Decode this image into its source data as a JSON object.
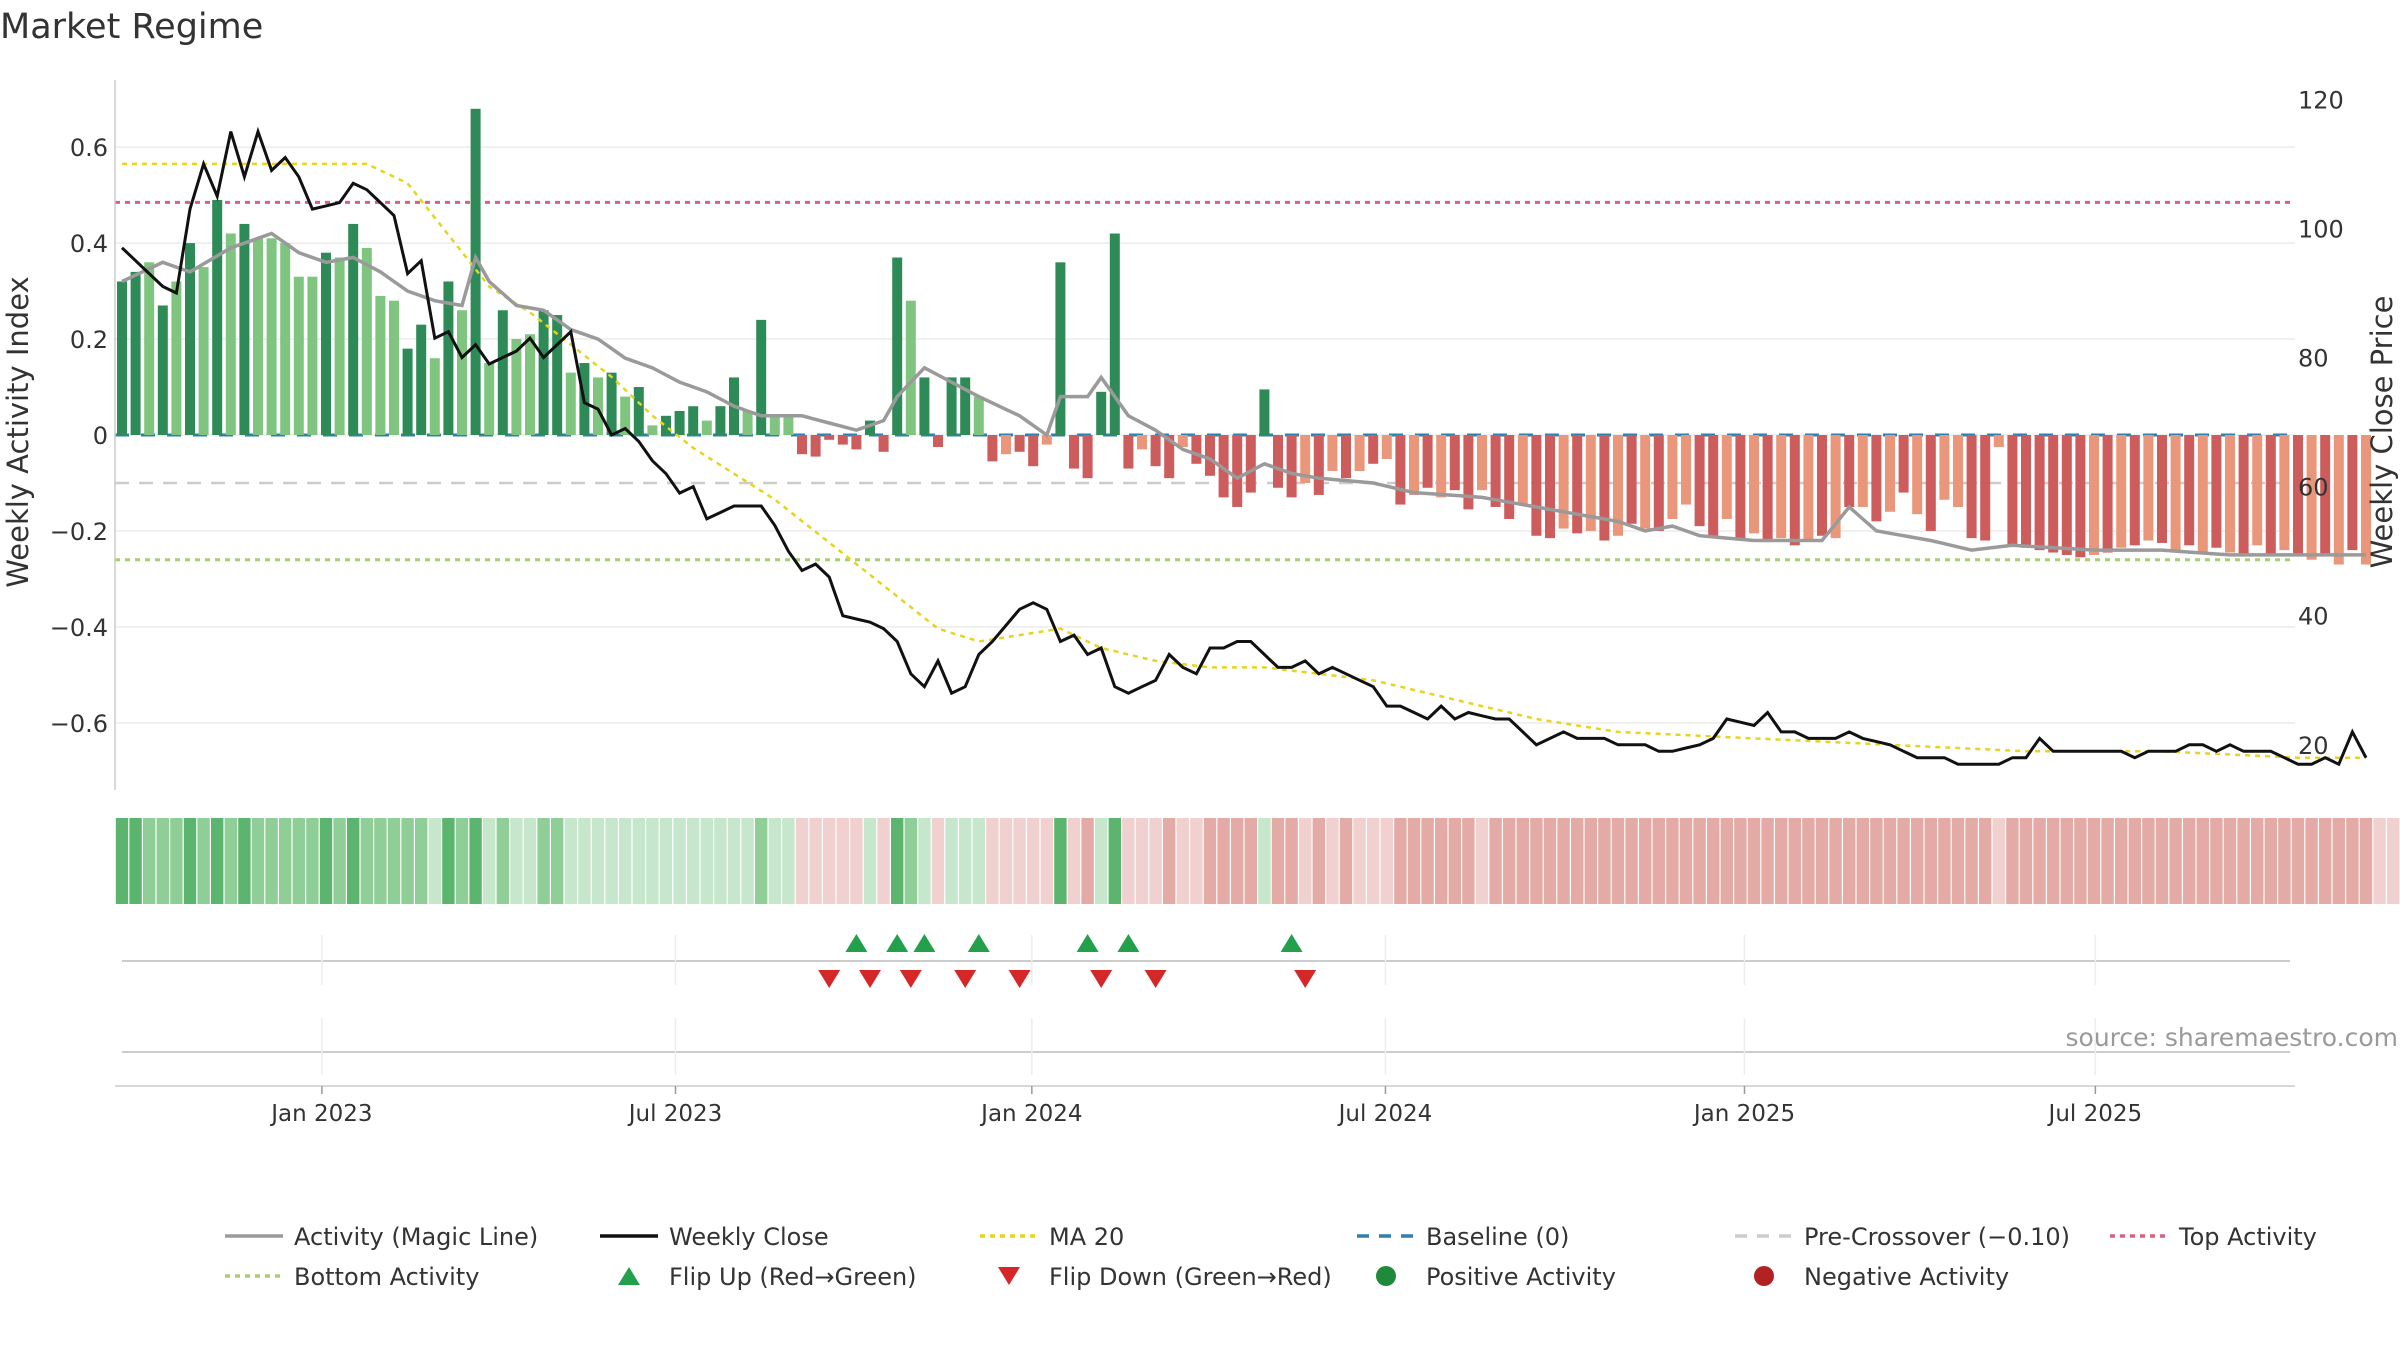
{
  "chart_data": {
    "type": "bar",
    "title": "Market Regime",
    "ylabel_left": "Weekly Activity Index",
    "ylabel_right": "Weekly Close Price",
    "ylim_left": [
      -0.74,
      0.74
    ],
    "ylim_right": [
      13,
      123
    ],
    "y_ticks_left": [
      {
        "v": 0.6,
        "label": "0.6"
      },
      {
        "v": 0.4,
        "label": "0.4"
      },
      {
        "v": 0.2,
        "label": "0.2"
      },
      {
        "v": 0,
        "label": "0"
      },
      {
        "v": -0.2,
        "label": "−0.2"
      },
      {
        "v": -0.4,
        "label": "−0.4"
      },
      {
        "v": -0.6,
        "label": "−0.6"
      }
    ],
    "y_ticks_right": [
      {
        "v": 120,
        "label": "120"
      },
      {
        "v": 100,
        "label": "100"
      },
      {
        "v": 80,
        "label": "80"
      },
      {
        "v": 60,
        "label": "60"
      },
      {
        "v": 40,
        "label": "40"
      },
      {
        "v": 20,
        "label": "20"
      }
    ],
    "x_ticks": [
      {
        "i": 14.7,
        "label": "Jan 2023"
      },
      {
        "i": 40.7,
        "label": "Jul 2023"
      },
      {
        "i": 66.9,
        "label": "Jan 2024"
      },
      {
        "i": 92.9,
        "label": "Jul 2024"
      },
      {
        "i": 119.3,
        "label": "Jan 2025"
      },
      {
        "i": 145.1,
        "label": "Jul 2025"
      }
    ],
    "reference_lines": {
      "top_activity": 0.485,
      "bottom_activity": -0.26,
      "pre_crossover": -0.1,
      "baseline": 0
    },
    "activity": [
      0.32,
      0.34,
      0.36,
      0.27,
      0.32,
      0.4,
      0.35,
      0.49,
      0.42,
      0.44,
      0.41,
      0.41,
      0.4,
      0.33,
      0.33,
      0.38,
      0.37,
      0.44,
      0.39,
      0.29,
      0.28,
      0.18,
      0.23,
      0.16,
      0.32,
      0.26,
      0.68,
      0.15,
      0.26,
      0.2,
      0.21,
      0.26,
      0.25,
      0.13,
      0.15,
      0.12,
      0.13,
      0.08,
      0.1,
      0.02,
      0.04,
      0.05,
      0.06,
      0.03,
      0.06,
      0.12,
      0.05,
      0.24,
      0.04,
      0.04,
      -0.04,
      -0.045,
      -0.01,
      -0.02,
      -0.03,
      0.03,
      -0.035,
      0.37,
      0.28,
      0.12,
      -0.025,
      0.12,
      0.12,
      0.08,
      -0.055,
      -0.04,
      -0.035,
      -0.065,
      -0.02,
      0.36,
      -0.07,
      -0.09,
      0.09,
      0.42,
      -0.07,
      -0.03,
      -0.065,
      -0.09,
      -0.025,
      -0.06,
      -0.085,
      -0.13,
      -0.15,
      -0.12,
      0.095,
      -0.11,
      -0.13,
      -0.1,
      -0.125,
      -0.075,
      -0.09,
      -0.075,
      -0.06,
      -0.05,
      -0.145,
      -0.125,
      -0.11,
      -0.13,
      -0.115,
      -0.155,
      -0.115,
      -0.15,
      -0.175,
      -0.145,
      -0.21,
      -0.215,
      -0.195,
      -0.205,
      -0.2,
      -0.22,
      -0.21,
      -0.185,
      -0.195,
      -0.2,
      -0.175,
      -0.145,
      -0.19,
      -0.21,
      -0.175,
      -0.22,
      -0.205,
      -0.22,
      -0.215,
      -0.23,
      -0.22,
      -0.21,
      -0.215,
      -0.15,
      -0.15,
      -0.18,
      -0.16,
      -0.12,
      -0.165,
      -0.2,
      -0.135,
      -0.15,
      -0.215,
      -0.22,
      -0.025,
      -0.23,
      -0.235,
      -0.24,
      -0.245,
      -0.25,
      -0.255,
      -0.25,
      -0.245,
      -0.235,
      -0.23,
      -0.22,
      -0.225,
      -0.24,
      -0.23,
      -0.245,
      -0.235,
      -0.245,
      -0.25,
      -0.23,
      -0.25,
      -0.24,
      -0.25,
      -0.26,
      -0.25,
      -0.27,
      -0.24,
      -0.27
    ],
    "regime": [
      "strong-pos",
      "strong-pos",
      "weak-pos",
      "strong-pos",
      "weak-pos",
      "strong-pos",
      "weak-pos",
      "strong-pos",
      "weak-pos",
      "strong-pos",
      "weak-pos",
      "weak-pos",
      "weak-pos",
      "weak-pos",
      "weak-pos",
      "strong-pos",
      "weak-pos",
      "strong-pos",
      "weak-pos",
      "weak-pos",
      "weak-pos",
      "strong-pos",
      "strong-pos",
      "weak-pos",
      "strong-pos",
      "weak-pos",
      "strong-pos",
      "weak-pos",
      "strong-pos",
      "weak-pos",
      "weak-pos",
      "strong-pos",
      "strong-pos",
      "weak-pos",
      "strong-pos",
      "weak-pos",
      "strong-pos",
      "weak-pos",
      "strong-pos",
      "weak-pos",
      "strong-pos",
      "strong-pos",
      "strong-pos",
      "weak-pos",
      "strong-pos",
      "strong-pos",
      "weak-pos",
      "strong-pos",
      "weak-pos",
      "weak-pos",
      "strong-neg",
      "strong-neg",
      "strong-neg",
      "strong-neg",
      "strong-neg",
      "strong-pos",
      "strong-neg",
      "strong-pos",
      "weak-pos",
      "strong-pos",
      "strong-neg",
      "strong-pos",
      "strong-pos",
      "weak-pos",
      "strong-neg",
      "weak-neg",
      "strong-neg",
      "strong-neg",
      "weak-neg",
      "strong-pos",
      "strong-neg",
      "strong-neg",
      "strong-pos",
      "strong-pos",
      "strong-neg",
      "weak-neg",
      "strong-neg",
      "strong-neg",
      "weak-neg",
      "strong-neg",
      "strong-neg",
      "strong-neg",
      "strong-neg",
      "strong-neg",
      "strong-pos",
      "strong-neg",
      "strong-neg",
      "weak-neg",
      "strong-neg",
      "weak-neg",
      "strong-neg",
      "weak-neg",
      "strong-neg",
      "weak-neg",
      "strong-neg",
      "weak-neg",
      "strong-neg",
      "weak-neg",
      "strong-neg",
      "strong-neg",
      "weak-neg",
      "strong-neg",
      "strong-neg",
      "weak-neg",
      "strong-neg",
      "strong-neg",
      "weak-neg",
      "strong-neg",
      "weak-neg",
      "strong-neg",
      "weak-neg",
      "strong-neg",
      "weak-neg",
      "strong-neg",
      "weak-neg",
      "weak-neg",
      "strong-neg",
      "strong-neg",
      "weak-neg",
      "strong-neg",
      "weak-neg",
      "strong-neg",
      "weak-neg",
      "strong-neg",
      "weak-neg",
      "strong-neg",
      "weak-neg",
      "strong-neg",
      "weak-neg",
      "strong-neg",
      "weak-neg",
      "strong-neg",
      "weak-neg",
      "strong-neg",
      "weak-neg",
      "weak-neg",
      "strong-neg",
      "strong-neg",
      "weak-neg",
      "strong-neg",
      "strong-neg",
      "strong-neg",
      "strong-neg",
      "strong-neg",
      "strong-neg",
      "weak-neg",
      "strong-neg",
      "weak-neg",
      "strong-neg",
      "weak-neg",
      "strong-neg",
      "weak-neg",
      "strong-neg",
      "weak-neg",
      "strong-neg",
      "weak-neg",
      "strong-neg",
      "weak-neg",
      "strong-neg",
      "weak-neg",
      "strong-neg",
      "weak-neg",
      "strong-neg",
      "weak-neg",
      "strong-neg",
      "weak-neg",
      "strong-neg",
      "weak-neg",
      "strong-neg",
      "weak-neg",
      "strong-neg"
    ],
    "magic_line_anchors": [
      [
        0,
        0.32
      ],
      [
        3,
        0.36
      ],
      [
        5,
        0.34
      ],
      [
        8,
        0.39
      ],
      [
        11,
        0.42
      ],
      [
        13,
        0.38
      ],
      [
        15,
        0.36
      ],
      [
        17,
        0.37
      ],
      [
        19,
        0.34
      ],
      [
        21,
        0.3
      ],
      [
        23,
        0.28
      ],
      [
        25,
        0.27
      ],
      [
        26,
        0.37
      ],
      [
        27,
        0.32
      ],
      [
        29,
        0.27
      ],
      [
        31,
        0.26
      ],
      [
        33,
        0.22
      ],
      [
        35,
        0.2
      ],
      [
        37,
        0.16
      ],
      [
        39,
        0.14
      ],
      [
        41,
        0.11
      ],
      [
        43,
        0.09
      ],
      [
        45,
        0.06
      ],
      [
        47,
        0.04
      ],
      [
        50,
        0.04
      ],
      [
        54,
        0.01
      ],
      [
        56,
        0.03
      ],
      [
        57,
        0.08
      ],
      [
        59,
        0.14
      ],
      [
        61,
        0.11
      ],
      [
        63,
        0.08
      ],
      [
        66,
        0.04
      ],
      [
        68,
        0.0
      ],
      [
        69,
        0.08
      ],
      [
        71,
        0.08
      ],
      [
        72,
        0.12
      ],
      [
        74,
        0.04
      ],
      [
        76,
        0.01
      ],
      [
        78,
        -0.03
      ],
      [
        80,
        -0.05
      ],
      [
        82,
        -0.09
      ],
      [
        84,
        -0.06
      ],
      [
        86,
        -0.08
      ],
      [
        88,
        -0.09
      ],
      [
        92,
        -0.1
      ],
      [
        95,
        -0.12
      ],
      [
        100,
        -0.13
      ],
      [
        104,
        -0.15
      ],
      [
        108,
        -0.17
      ],
      [
        110,
        -0.18
      ],
      [
        112,
        -0.2
      ],
      [
        114,
        -0.19
      ],
      [
        116,
        -0.21
      ],
      [
        120,
        -0.22
      ],
      [
        125,
        -0.22
      ],
      [
        127,
        -0.15
      ],
      [
        129,
        -0.2
      ],
      [
        133,
        -0.22
      ],
      [
        136,
        -0.24
      ],
      [
        139,
        -0.23
      ],
      [
        145,
        -0.24
      ],
      [
        150,
        -0.24
      ],
      [
        155,
        -0.25
      ],
      [
        160,
        -0.25
      ]
    ],
    "weekly_close_anchors": [
      [
        0,
        97
      ],
      [
        1,
        95
      ],
      [
        3,
        91
      ],
      [
        4,
        90
      ],
      [
        5,
        103
      ],
      [
        6,
        110
      ],
      [
        7,
        105
      ],
      [
        8,
        115
      ],
      [
        9,
        108
      ],
      [
        10,
        115
      ],
      [
        11,
        109
      ],
      [
        12,
        111
      ],
      [
        13,
        108
      ],
      [
        14,
        103
      ],
      [
        16,
        104
      ],
      [
        17,
        107
      ],
      [
        18,
        106
      ],
      [
        20,
        102
      ],
      [
        21,
        93
      ],
      [
        22,
        95
      ],
      [
        23,
        83
      ],
      [
        24,
        84
      ],
      [
        25,
        80
      ],
      [
        26,
        82
      ],
      [
        27,
        79
      ],
      [
        28,
        80
      ],
      [
        29,
        81
      ],
      [
        30,
        83
      ],
      [
        31,
        80
      ],
      [
        32,
        82
      ],
      [
        33,
        84
      ],
      [
        34,
        73
      ],
      [
        35,
        72
      ],
      [
        36,
        68
      ],
      [
        37,
        69
      ],
      [
        38,
        67
      ],
      [
        39,
        64
      ],
      [
        40,
        62
      ],
      [
        41,
        59
      ],
      [
        42,
        60
      ],
      [
        43,
        55
      ],
      [
        45,
        57
      ],
      [
        47,
        57
      ],
      [
        48,
        54
      ],
      [
        49,
        50
      ],
      [
        50,
        47
      ],
      [
        51,
        48
      ],
      [
        52,
        46
      ],
      [
        53,
        40
      ],
      [
        55,
        39
      ],
      [
        56,
        38
      ],
      [
        57,
        36
      ],
      [
        58,
        31
      ],
      [
        59,
        29
      ],
      [
        60,
        33
      ],
      [
        61,
        28
      ],
      [
        62,
        29
      ],
      [
        63,
        34
      ],
      [
        64,
        36
      ],
      [
        66,
        41
      ],
      [
        67,
        42
      ],
      [
        68,
        41
      ],
      [
        69,
        36
      ],
      [
        70,
        37
      ],
      [
        71,
        34
      ],
      [
        72,
        35
      ],
      [
        73,
        29
      ],
      [
        74,
        28
      ],
      [
        75,
        29
      ],
      [
        76,
        30
      ],
      [
        77,
        34
      ],
      [
        78,
        32
      ],
      [
        79,
        31
      ],
      [
        80,
        35
      ],
      [
        81,
        35
      ],
      [
        82,
        36
      ],
      [
        83,
        36
      ],
      [
        84,
        34
      ],
      [
        85,
        32
      ],
      [
        86,
        32
      ],
      [
        87,
        33
      ],
      [
        88,
        31
      ],
      [
        89,
        32
      ],
      [
        91,
        30
      ],
      [
        92,
        29
      ],
      [
        93,
        26
      ],
      [
        94,
        26
      ],
      [
        95,
        25
      ],
      [
        96,
        24
      ],
      [
        97,
        26
      ],
      [
        98,
        24
      ],
      [
        99,
        25
      ],
      [
        101,
        24
      ],
      [
        102,
        24
      ],
      [
        103,
        22
      ],
      [
        104,
        20
      ],
      [
        105,
        21
      ],
      [
        106,
        22
      ],
      [
        107,
        21
      ],
      [
        109,
        21
      ],
      [
        110,
        20
      ],
      [
        112,
        20
      ],
      [
        113,
        19
      ],
      [
        114,
        19
      ],
      [
        116,
        20
      ],
      [
        117,
        21
      ],
      [
        118,
        24
      ],
      [
        120,
        23
      ],
      [
        121,
        25
      ],
      [
        122,
        22
      ],
      [
        123,
        22
      ],
      [
        124,
        21
      ],
      [
        126,
        21
      ],
      [
        127,
        22
      ],
      [
        128,
        21
      ],
      [
        130,
        20
      ],
      [
        131,
        19
      ],
      [
        132,
        18
      ],
      [
        134,
        18
      ],
      [
        135,
        17
      ],
      [
        136,
        17
      ],
      [
        137,
        17
      ],
      [
        138,
        17
      ],
      [
        139,
        18
      ],
      [
        140,
        18
      ],
      [
        141,
        21
      ],
      [
        142,
        19
      ],
      [
        144,
        19
      ],
      [
        145,
        19
      ],
      [
        146,
        19
      ],
      [
        147,
        19
      ],
      [
        148,
        18
      ],
      [
        149,
        19
      ],
      [
        150,
        19
      ],
      [
        151,
        19
      ],
      [
        152,
        20
      ],
      [
        153,
        20
      ],
      [
        154,
        19
      ],
      [
        155,
        20
      ],
      [
        156,
        19
      ],
      [
        157,
        19
      ],
      [
        158,
        19
      ],
      [
        159,
        18
      ],
      [
        160,
        17
      ],
      [
        161,
        17
      ],
      [
        162,
        18
      ],
      [
        163,
        17
      ],
      [
        164,
        22
      ],
      [
        165,
        18
      ]
    ],
    "ma20_anchors": [
      [
        0,
        110
      ],
      [
        18,
        110
      ],
      [
        21,
        107
      ],
      [
        24,
        99
      ],
      [
        27,
        91
      ],
      [
        30,
        87
      ],
      [
        33,
        82
      ],
      [
        36,
        77
      ],
      [
        39,
        71
      ],
      [
        42,
        66
      ],
      [
        45,
        62
      ],
      [
        48,
        58
      ],
      [
        51,
        53
      ],
      [
        54,
        48
      ],
      [
        57,
        43
      ],
      [
        60,
        38
      ],
      [
        63,
        36
      ],
      [
        66,
        37
      ],
      [
        69,
        38
      ],
      [
        72,
        35
      ],
      [
        76,
        33
      ],
      [
        80,
        32
      ],
      [
        84,
        32
      ],
      [
        88,
        31
      ],
      [
        92,
        30
      ],
      [
        96,
        28
      ],
      [
        100,
        26
      ],
      [
        104,
        24
      ],
      [
        110,
        22
      ],
      [
        120,
        21
      ],
      [
        130,
        20
      ],
      [
        140,
        19
      ],
      [
        150,
        19
      ],
      [
        160,
        18
      ],
      [
        165,
        18
      ]
    ],
    "flip_up_indices": [
      54,
      57,
      59,
      63,
      71,
      74,
      86
    ],
    "flip_down_indices": [
      52,
      55,
      58,
      62,
      66,
      72,
      76,
      87
    ],
    "legend": [
      {
        "label": "Activity (Magic Line)",
        "type": "line",
        "color": "#9a9a9a",
        "dash": ""
      },
      {
        "label": "Weekly Close",
        "type": "line",
        "color": "#111111",
        "dash": ""
      },
      {
        "label": "MA 20",
        "type": "line",
        "color": "#e6d41f",
        "dash": "5,5"
      },
      {
        "label": "Baseline (0)",
        "type": "line",
        "color": "#2f7fb0",
        "dash": "12,10"
      },
      {
        "label": "Pre-Crossover (−0.10)",
        "type": "line",
        "color": "#cccccc",
        "dash": "12,10"
      },
      {
        "label": "Top Activity",
        "type": "line",
        "color": "#d9607e",
        "dash": "5,5"
      },
      {
        "label": "Bottom Activity",
        "type": "line",
        "color": "#a8cf6f",
        "dash": "5,5"
      },
      {
        "label": "Flip Up (Red→Green)",
        "type": "tri-up",
        "color": "#22a04b",
        "dash": ""
      },
      {
        "label": "Flip Down (Green→Red)",
        "type": "tri-down",
        "color": "#d62728",
        "dash": ""
      },
      {
        "label": "Positive Activity",
        "type": "dot",
        "color": "#1f8a3b",
        "dash": ""
      },
      {
        "label": "Negative Activity",
        "type": "dot",
        "color": "#b22222",
        "dash": ""
      }
    ],
    "source_text": "source: sharemaestro.com",
    "colors": {
      "strong_pos": "#2e8b57",
      "weak_pos": "#7fc47f",
      "strong_neg": "#cd5c5c",
      "weak_neg": "#e9967a",
      "magic": "#9a9a9a",
      "close": "#111111",
      "ma20": "#e6d41f",
      "baseline": "#2f7fb0",
      "pre": "#cccccc",
      "top": "#d9607e",
      "bottom": "#a8cf6f",
      "flip_up": "#22a04b",
      "flip_down": "#d62728",
      "strip_strong_pos": "#5bb56e",
      "strip_weak_pos": "#8fcf97",
      "strip_faint_pos": "#c6e7cb",
      "strip_strong_neg": "#e3aaa6",
      "strip_weak_neg": "#f1d1cf"
    }
  }
}
